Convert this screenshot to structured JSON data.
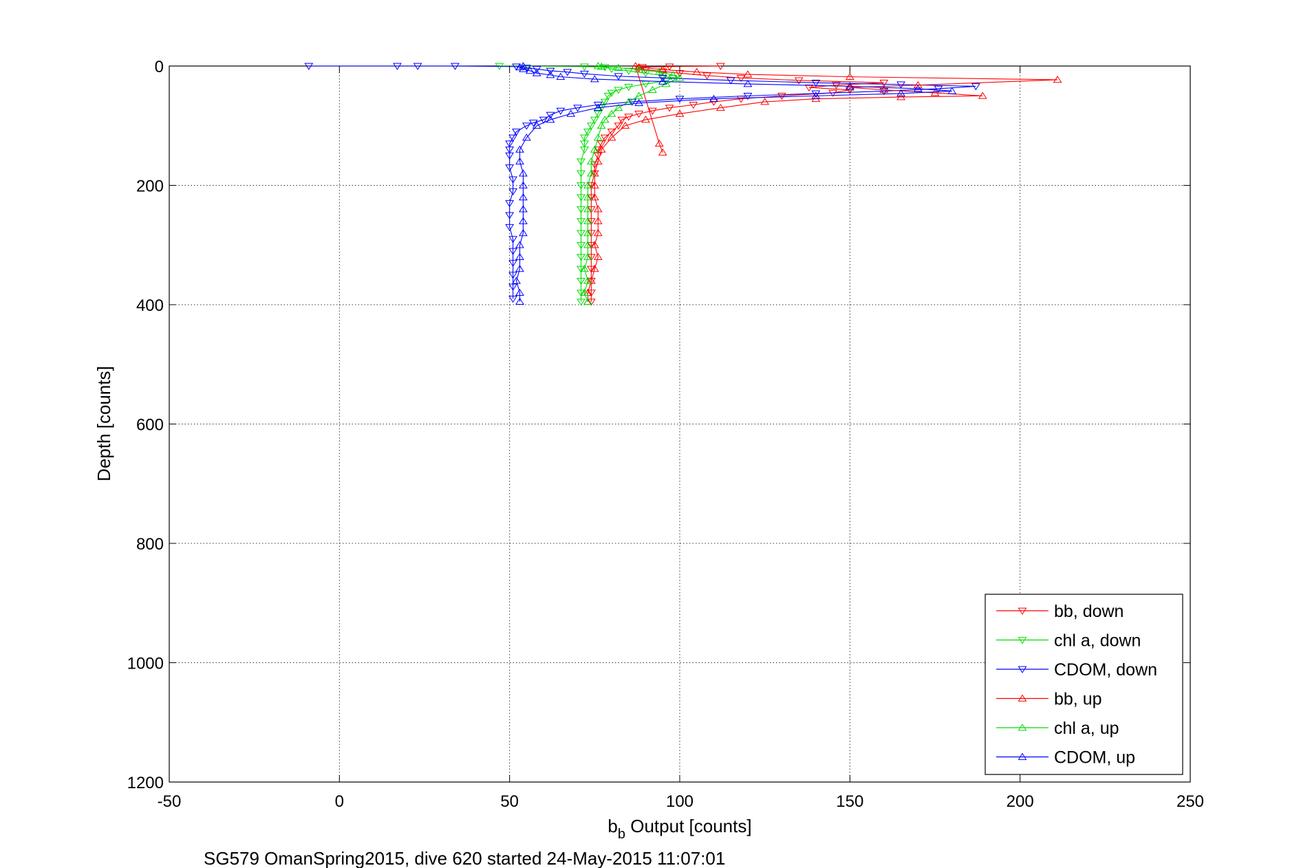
{
  "chart_data": {
    "type": "scatter",
    "title": "",
    "xlabel_main": "b",
    "xlabel_sub": "b",
    "xlabel_rest": " Output [counts]",
    "ylabel": "Depth [counts]",
    "caption": "SG579 OmanSpring2015, dive 620 started 24-May-2015 11:07:01",
    "xlim": [
      -50,
      250
    ],
    "ylim": [
      0,
      1200
    ],
    "y_reversed": true,
    "x_ticks": [
      -50,
      0,
      50,
      100,
      150,
      200,
      250
    ],
    "y_ticks": [
      0,
      200,
      400,
      600,
      800,
      1000,
      1200
    ],
    "grid": true,
    "legend_position": "bottom-right",
    "series": [
      {
        "name": "bb, down",
        "color": "#ff0000",
        "marker": "triangle-down",
        "points": [
          [
            112,
            0
          ],
          [
            97,
            1
          ],
          [
            89,
            2
          ],
          [
            88,
            4
          ],
          [
            90,
            6
          ],
          [
            95,
            9
          ],
          [
            100,
            12
          ],
          [
            108,
            16
          ],
          [
            118,
            20
          ],
          [
            135,
            24
          ],
          [
            160,
            28
          ],
          [
            146,
            32
          ],
          [
            138,
            36
          ],
          [
            150,
            40
          ],
          [
            145,
            45
          ],
          [
            130,
            50
          ],
          [
            118,
            55
          ],
          [
            110,
            60
          ],
          [
            104,
            65
          ],
          [
            97,
            70
          ],
          [
            92,
            75
          ],
          [
            88,
            80
          ],
          [
            85,
            85
          ],
          [
            83,
            90
          ],
          [
            82,
            100
          ],
          [
            80,
            110
          ],
          [
            78,
            120
          ],
          [
            77,
            130
          ],
          [
            76,
            140
          ],
          [
            76,
            150
          ],
          [
            75,
            165
          ],
          [
            75,
            180
          ],
          [
            74,
            200
          ],
          [
            74,
            220
          ],
          [
            74,
            240
          ],
          [
            74,
            260
          ],
          [
            74,
            280
          ],
          [
            74,
            300
          ],
          [
            74,
            320
          ],
          [
            74,
            340
          ],
          [
            74,
            360
          ],
          [
            74,
            380
          ],
          [
            74,
            395
          ]
        ]
      },
      {
        "name": "chl a, down",
        "color": "#00dd00",
        "marker": "triangle-down",
        "points": [
          [
            47,
            0
          ],
          [
            72,
            1
          ],
          [
            78,
            2
          ],
          [
            80,
            5
          ],
          [
            85,
            8
          ],
          [
            90,
            12
          ],
          [
            95,
            16
          ],
          [
            98,
            20
          ],
          [
            96,
            25
          ],
          [
            90,
            30
          ],
          [
            85,
            35
          ],
          [
            82,
            40
          ],
          [
            80,
            45
          ],
          [
            79,
            50
          ],
          [
            78,
            60
          ],
          [
            77,
            70
          ],
          [
            76,
            80
          ],
          [
            75,
            90
          ],
          [
            74,
            100
          ],
          [
            73,
            110
          ],
          [
            72,
            120
          ],
          [
            72,
            130
          ],
          [
            72,
            140
          ],
          [
            71,
            160
          ],
          [
            71,
            180
          ],
          [
            71,
            200
          ],
          [
            71,
            220
          ],
          [
            71,
            240
          ],
          [
            71,
            260
          ],
          [
            71,
            280
          ],
          [
            71,
            300
          ],
          [
            71,
            320
          ],
          [
            71,
            340
          ],
          [
            71,
            360
          ],
          [
            71,
            380
          ],
          [
            71,
            395
          ]
        ]
      },
      {
        "name": "CDOM, down",
        "color": "#0000ff",
        "marker": "triangle-down",
        "points": [
          [
            -9,
            0
          ],
          [
            17,
            0
          ],
          [
            23,
            0
          ],
          [
            34,
            0
          ],
          [
            52,
            1
          ],
          [
            55,
            3
          ],
          [
            58,
            5
          ],
          [
            62,
            8
          ],
          [
            67,
            10
          ],
          [
            72,
            13
          ],
          [
            82,
            17
          ],
          [
            95,
            20
          ],
          [
            115,
            24
          ],
          [
            140,
            28
          ],
          [
            165,
            31
          ],
          [
            187,
            34
          ],
          [
            176,
            38
          ],
          [
            160,
            42
          ],
          [
            140,
            46
          ],
          [
            120,
            50
          ],
          [
            100,
            55
          ],
          [
            86,
            60
          ],
          [
            76,
            65
          ],
          [
            70,
            70
          ],
          [
            65,
            75
          ],
          [
            62,
            82
          ],
          [
            60,
            90
          ],
          [
            57,
            95
          ],
          [
            55,
            100
          ],
          [
            52,
            110
          ],
          [
            51,
            120
          ],
          [
            50,
            130
          ],
          [
            50,
            140
          ],
          [
            50,
            150
          ],
          [
            50,
            170
          ],
          [
            51,
            190
          ],
          [
            51,
            210
          ],
          [
            50,
            230
          ],
          [
            50,
            250
          ],
          [
            50,
            270
          ],
          [
            51,
            290
          ],
          [
            51,
            310
          ],
          [
            51,
            330
          ],
          [
            51,
            350
          ],
          [
            51,
            370
          ],
          [
            51,
            390
          ]
        ]
      },
      {
        "name": "bb, up",
        "color": "#ff0000",
        "marker": "triangle-up",
        "points": [
          [
            73,
            395
          ],
          [
            73,
            380
          ],
          [
            74,
            360
          ],
          [
            75,
            340
          ],
          [
            76,
            320
          ],
          [
            75,
            300
          ],
          [
            76,
            280
          ],
          [
            76,
            260
          ],
          [
            76,
            240
          ],
          [
            75,
            220
          ],
          [
            75,
            200
          ],
          [
            75,
            180
          ],
          [
            76,
            160
          ],
          [
            77,
            140
          ],
          [
            80,
            120
          ],
          [
            84,
            100
          ],
          [
            90,
            90
          ],
          [
            100,
            80
          ],
          [
            112,
            70
          ],
          [
            125,
            60
          ],
          [
            140,
            55
          ],
          [
            165,
            52
          ],
          [
            189,
            50
          ],
          [
            175,
            45
          ],
          [
            160,
            40
          ],
          [
            150,
            36
          ],
          [
            170,
            32
          ],
          [
            211,
            23
          ],
          [
            150,
            18
          ],
          [
            120,
            14
          ],
          [
            105,
            10
          ],
          [
            95,
            6
          ],
          [
            88,
            2
          ],
          [
            87,
            0
          ],
          [
            94,
            130
          ],
          [
            95,
            145
          ]
        ]
      },
      {
        "name": "chl a, up",
        "color": "#00dd00",
        "marker": "triangle-up",
        "points": [
          [
            73,
            395
          ],
          [
            72,
            380
          ],
          [
            73,
            360
          ],
          [
            72,
            340
          ],
          [
            73,
            320
          ],
          [
            73,
            300
          ],
          [
            73,
            280
          ],
          [
            73,
            260
          ],
          [
            73,
            240
          ],
          [
            73,
            220
          ],
          [
            73,
            200
          ],
          [
            74,
            180
          ],
          [
            74,
            160
          ],
          [
            75,
            140
          ],
          [
            76,
            120
          ],
          [
            77,
            100
          ],
          [
            78,
            90
          ],
          [
            80,
            80
          ],
          [
            82,
            70
          ],
          [
            85,
            60
          ],
          [
            88,
            50
          ],
          [
            92,
            40
          ],
          [
            96,
            30
          ],
          [
            100,
            20
          ],
          [
            98,
            15
          ],
          [
            94,
            10
          ],
          [
            88,
            6
          ],
          [
            82,
            3
          ],
          [
            77,
            1
          ],
          [
            76,
            0
          ]
        ]
      },
      {
        "name": "CDOM, up",
        "color": "#0000ff",
        "marker": "triangle-up",
        "points": [
          [
            53,
            395
          ],
          [
            53,
            380
          ],
          [
            52,
            360
          ],
          [
            53,
            340
          ],
          [
            53,
            320
          ],
          [
            53,
            300
          ],
          [
            54,
            280
          ],
          [
            54,
            260
          ],
          [
            54,
            240
          ],
          [
            54,
            220
          ],
          [
            54,
            200
          ],
          [
            54,
            180
          ],
          [
            53,
            160
          ],
          [
            53,
            140
          ],
          [
            55,
            120
          ],
          [
            58,
            100
          ],
          [
            62,
            90
          ],
          [
            68,
            80
          ],
          [
            76,
            70
          ],
          [
            88,
            62
          ],
          [
            110,
            55
          ],
          [
            140,
            50
          ],
          [
            165,
            46
          ],
          [
            180,
            42
          ],
          [
            170,
            38
          ],
          [
            150,
            34
          ],
          [
            120,
            30
          ],
          [
            95,
            26
          ],
          [
            75,
            22
          ],
          [
            65,
            18
          ],
          [
            62,
            15
          ],
          [
            58,
            12
          ],
          [
            56,
            8
          ],
          [
            54,
            5
          ],
          [
            53,
            2
          ],
          [
            54,
            0
          ]
        ]
      }
    ]
  }
}
